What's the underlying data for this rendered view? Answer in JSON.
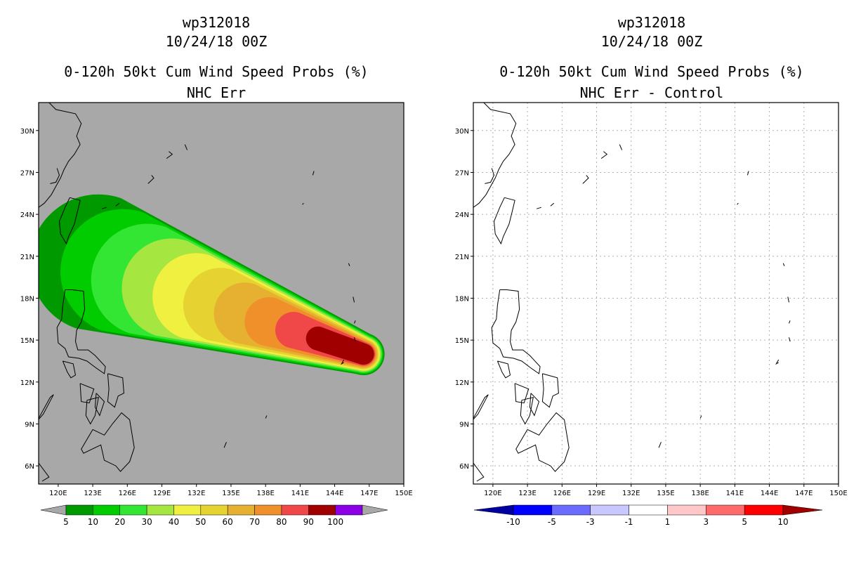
{
  "panels": [
    {
      "storm_id": "wp312018",
      "datetime": "10/24/18 00Z",
      "product": "0-120h 50kt Cum Wind Speed Probs (%)",
      "subtitle": "NHC Err",
      "background": "#a8a8a8",
      "legend_labels": [
        "5",
        "10",
        "20",
        "30",
        "40",
        "50",
        "60",
        "70",
        "80",
        "90",
        "100"
      ],
      "legend_colors": [
        "#009a00",
        "#00cc00",
        "#33e633",
        "#a6e640",
        "#f0f040",
        "#e6d230",
        "#e6b030",
        "#f0902a",
        "#f04848",
        "#a00000",
        "#8c00e6"
      ]
    },
    {
      "storm_id": "wp312018",
      "datetime": "10/24/18 00Z",
      "product": "0-120h 50kt Cum Wind Speed Probs (%)",
      "subtitle": "NHC Err - Control",
      "background": "#ffffff",
      "legend_labels": [
        "-10",
        "-5",
        "-3",
        "-1",
        "1",
        "3",
        "5",
        "10"
      ],
      "legend_colors": [
        "#0000a0",
        "#0000ff",
        "#6b6bff",
        "#c8c8ff",
        "#ffffff",
        "#ffc8c8",
        "#ff6b6b",
        "#ff0000",
        "#a00000"
      ]
    }
  ],
  "axes": {
    "lon_ticks": [
      "120E",
      "123E",
      "126E",
      "129E",
      "132E",
      "135E",
      "138E",
      "141E",
      "144E",
      "147E",
      "150E"
    ],
    "lat_ticks": [
      "30N",
      "27N",
      "24N",
      "21N",
      "18N",
      "15N",
      "12N",
      "9N",
      "6N"
    ],
    "lon_range": [
      118.3,
      150
    ],
    "lat_range": [
      4.7,
      32
    ]
  },
  "probability_field": {
    "levels": [
      5,
      10,
      20,
      30,
      40,
      50,
      60,
      70,
      80,
      90
    ],
    "core_center": [
      146.5,
      14.0
    ],
    "swath_start": [
      123.5,
      20.5
    ]
  }
}
